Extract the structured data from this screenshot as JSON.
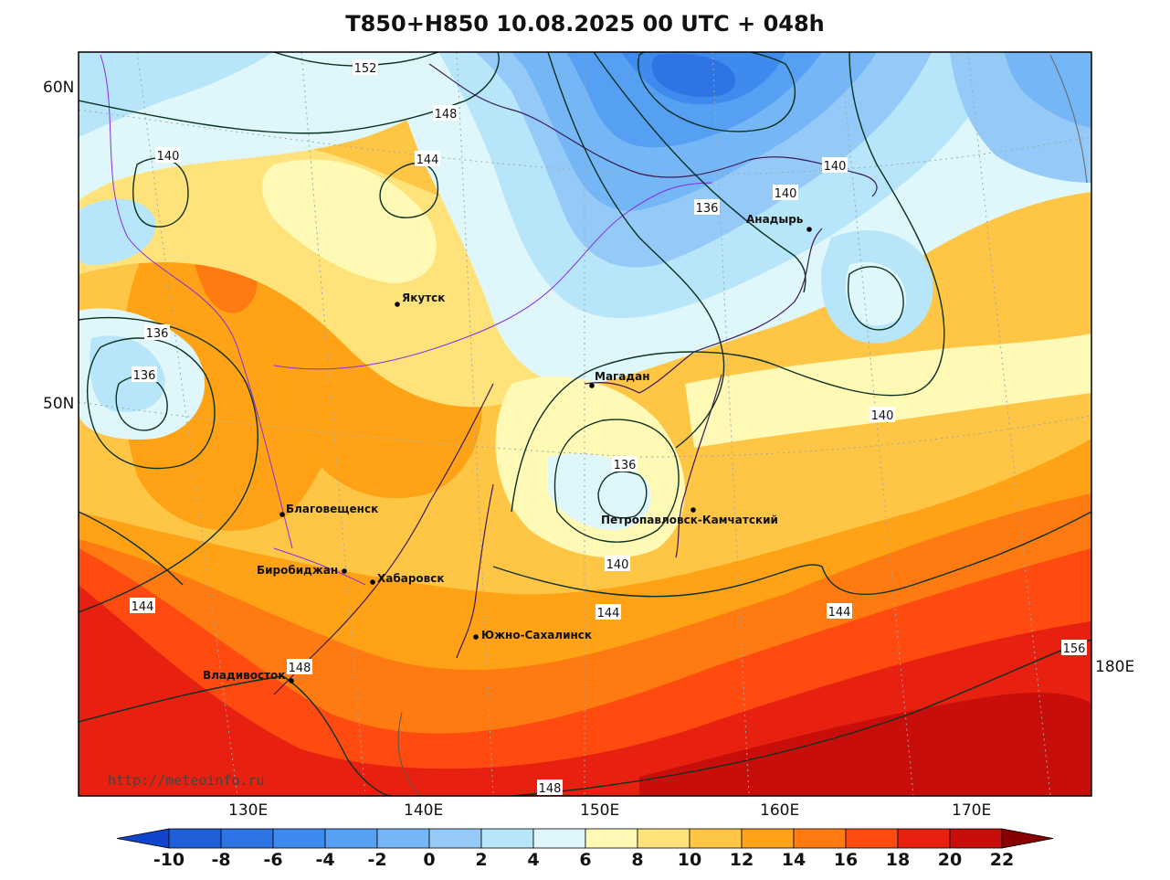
{
  "title": "T850+H850 10.08.2025 00 UTC + 048h",
  "watermark": "http://meteoinfo.ru",
  "lat_labels": [
    "60N",
    "50N"
  ],
  "lon_labels": [
    "130E",
    "140E",
    "150E",
    "160E",
    "170E",
    "180E"
  ],
  "colorbar": {
    "ticks": [
      "-10",
      "-8",
      "-6",
      "-4",
      "-2",
      "0",
      "2",
      "4",
      "6",
      "8",
      "10",
      "12",
      "14",
      "16",
      "18",
      "20",
      "22"
    ],
    "colors": [
      "#1f5fd8",
      "#2f74e4",
      "#3f8aee",
      "#55a0f3",
      "#74b6f6",
      "#95caf8",
      "#b7e6fa",
      "#dff7fb",
      "#fff9b6",
      "#ffe37a",
      "#ffc646",
      "#ffa215",
      "#ff7a10",
      "#ff4a10",
      "#e82010",
      "#c80e0a",
      "#a00606"
    ],
    "low_color": "#1144cc",
    "high_color": "#8a0000"
  },
  "cities": [
    {
      "name": "Якутск"
    },
    {
      "name": "Магадан"
    },
    {
      "name": "Анадырь"
    },
    {
      "name": "Благовещенск"
    },
    {
      "name": "Биробиджан"
    },
    {
      "name": "Хабаровск"
    },
    {
      "name": "Петропавловск-Камчатский"
    },
    {
      "name": "Южно-Сахалинск"
    },
    {
      "name": "Владивосток"
    }
  ],
  "contour_labels": [
    "152",
    "148",
    "140",
    "144",
    "136",
    "136",
    "140",
    "140",
    "136",
    "140",
    "136",
    "140",
    "144",
    "144",
    "144",
    "148",
    "156",
    "148"
  ]
}
